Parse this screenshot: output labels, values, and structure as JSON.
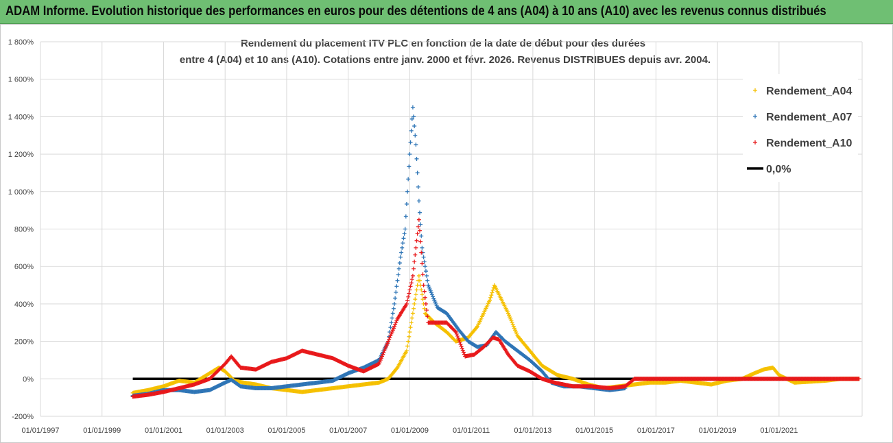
{
  "banner": {
    "text": "ADAM Informe. Evolution historique des performances en euros pour des détentions de 4 ans (A04) à 10 ans (A10) avec les revenus connus distribués"
  },
  "colors": {
    "banner_bg": "#6fbf73",
    "A04": "#f5c000",
    "A07": "#2e75b6",
    "A10": "#e8191b",
    "zero": "#000000",
    "grid": "#d9d9d9"
  },
  "chart_data": {
    "type": "scatter",
    "title_lines": [
      "Rendement du placement ITV PLC en fonction de la date de début pour des durées",
      "entre 4 (A04) et 10 ans (A10).  Cotations entre janv. 2000 et févr. 2026. Revenus DISTRIBUES depuis avr. 2004."
    ],
    "x_ticks": [
      "01/01/1997",
      "01/01/1999",
      "01/01/2001",
      "01/01/2003",
      "01/01/2005",
      "01/01/2007",
      "01/01/2009",
      "01/01/2011",
      "01/01/2013",
      "01/01/2015",
      "01/01/2017",
      "01/01/2019",
      "01/01/2021"
    ],
    "x_range": [
      1997.0,
      2023.7
    ],
    "y_ticks": [
      "-200%",
      "0%",
      "200%",
      "400%",
      "600%",
      "800%",
      "1 000%",
      "1 200%",
      "1 400%",
      "1 600%",
      "1 800%"
    ],
    "y_range": [
      -200,
      1800
    ],
    "grid": true,
    "legend_position": "top-right",
    "series": [
      {
        "name": "Rendement_A04",
        "marker": "plus",
        "points": [
          [
            2000.0,
            -75
          ],
          [
            2000.5,
            -60
          ],
          [
            2001.0,
            -40
          ],
          [
            2001.5,
            -10
          ],
          [
            2002.0,
            -20
          ],
          [
            2002.5,
            30
          ],
          [
            2002.8,
            60
          ],
          [
            2003.0,
            40
          ],
          [
            2003.3,
            -10
          ],
          [
            2003.6,
            -20
          ],
          [
            2004.0,
            -30
          ],
          [
            2004.5,
            -50
          ],
          [
            2005.0,
            -60
          ],
          [
            2005.5,
            -70
          ],
          [
            2006.0,
            -60
          ],
          [
            2006.5,
            -50
          ],
          [
            2007.0,
            -40
          ],
          [
            2007.5,
            -30
          ],
          [
            2008.0,
            -20
          ],
          [
            2008.3,
            0
          ],
          [
            2008.6,
            60
          ],
          [
            2008.9,
            150
          ],
          [
            2009.0,
            250
          ],
          [
            2009.15,
            400
          ],
          [
            2009.3,
            550
          ],
          [
            2009.4,
            450
          ],
          [
            2009.5,
            350
          ],
          [
            2009.8,
            300
          ],
          [
            2010.2,
            250
          ],
          [
            2010.5,
            200
          ],
          [
            2010.9,
            220
          ],
          [
            2011.2,
            280
          ],
          [
            2011.4,
            350
          ],
          [
            2011.6,
            420
          ],
          [
            2011.75,
            500
          ],
          [
            2011.9,
            450
          ],
          [
            2012.2,
            350
          ],
          [
            2012.5,
            230
          ],
          [
            2012.9,
            150
          ],
          [
            2013.3,
            70
          ],
          [
            2013.8,
            20
          ],
          [
            2014.3,
            0
          ],
          [
            2014.8,
            -30
          ],
          [
            2015.3,
            -50
          ],
          [
            2015.8,
            -40
          ],
          [
            2016.3,
            -30
          ],
          [
            2016.8,
            -20
          ],
          [
            2017.3,
            -20
          ],
          [
            2017.8,
            -10
          ],
          [
            2018.3,
            -20
          ],
          [
            2018.8,
            -30
          ],
          [
            2019.3,
            -10
          ],
          [
            2019.8,
            0
          ],
          [
            2020.2,
            30
          ],
          [
            2020.5,
            50
          ],
          [
            2020.8,
            60
          ],
          [
            2021.0,
            20
          ],
          [
            2021.5,
            -20
          ],
          [
            2022.0,
            -15
          ],
          [
            2022.5,
            -10
          ],
          [
            2023.0,
            0
          ],
          [
            2023.6,
            0
          ]
        ]
      },
      {
        "name": "Rendement_A07",
        "marker": "plus",
        "points": [
          [
            2000.0,
            -90
          ],
          [
            2000.5,
            -80
          ],
          [
            2001.0,
            -60
          ],
          [
            2001.5,
            -60
          ],
          [
            2002.0,
            -70
          ],
          [
            2002.5,
            -60
          ],
          [
            2003.0,
            -20
          ],
          [
            2003.2,
            -5
          ],
          [
            2003.5,
            -40
          ],
          [
            2004.0,
            -50
          ],
          [
            2004.5,
            -50
          ],
          [
            2005.0,
            -40
          ],
          [
            2005.5,
            -30
          ],
          [
            2006.0,
            -20
          ],
          [
            2006.5,
            -10
          ],
          [
            2007.0,
            30
          ],
          [
            2007.5,
            60
          ],
          [
            2008.0,
            100
          ],
          [
            2008.3,
            200
          ],
          [
            2008.5,
            400
          ],
          [
            2008.7,
            650
          ],
          [
            2008.85,
            800
          ],
          [
            2009.0,
            1200
          ],
          [
            2009.1,
            1450
          ],
          [
            2009.2,
            1250
          ],
          [
            2009.3,
            950
          ],
          [
            2009.4,
            700
          ],
          [
            2009.6,
            500
          ],
          [
            2009.9,
            380
          ],
          [
            2010.2,
            350
          ],
          [
            2010.6,
            260
          ],
          [
            2010.9,
            200
          ],
          [
            2011.2,
            170
          ],
          [
            2011.5,
            180
          ],
          [
            2011.8,
            250
          ],
          [
            2012.1,
            200
          ],
          [
            2012.5,
            150
          ],
          [
            2012.9,
            100
          ],
          [
            2013.3,
            40
          ],
          [
            2013.6,
            -20
          ],
          [
            2014.0,
            -40
          ],
          [
            2014.5,
            -40
          ],
          [
            2015.0,
            -50
          ],
          [
            2015.5,
            -60
          ],
          [
            2016.0,
            -50
          ]
        ]
      },
      {
        "name": "Rendement_A10",
        "marker": "plus",
        "points": [
          [
            2000.0,
            -95
          ],
          [
            2000.5,
            -85
          ],
          [
            2001.0,
            -70
          ],
          [
            2001.5,
            -50
          ],
          [
            2002.0,
            -30
          ],
          [
            2002.5,
            0
          ],
          [
            2003.0,
            80
          ],
          [
            2003.2,
            120
          ],
          [
            2003.5,
            60
          ],
          [
            2004.0,
            50
          ],
          [
            2004.5,
            90
          ],
          [
            2005.0,
            110
          ],
          [
            2005.5,
            150
          ],
          [
            2006.0,
            130
          ],
          [
            2006.5,
            110
          ],
          [
            2007.0,
            70
          ],
          [
            2007.5,
            40
          ],
          [
            2008.0,
            80
          ],
          [
            2008.3,
            200
          ],
          [
            2008.6,
            320
          ],
          [
            2008.9,
            400
          ],
          [
            2009.1,
            550
          ],
          [
            2009.3,
            850
          ],
          [
            2009.45,
            500
          ],
          [
            2009.6,
            300
          ],
          [
            2009.9,
            300
          ],
          [
            2010.2,
            300
          ],
          [
            2010.5,
            250
          ],
          [
            2010.8,
            120
          ],
          [
            2011.1,
            130
          ],
          [
            2011.4,
            170
          ],
          [
            2011.7,
            220
          ],
          [
            2011.9,
            210
          ],
          [
            2012.2,
            130
          ],
          [
            2012.5,
            70
          ],
          [
            2012.9,
            40
          ],
          [
            2013.3,
            0
          ],
          [
            2013.7,
            -20
          ],
          [
            2014.3,
            -40
          ],
          [
            2014.9,
            -40
          ],
          [
            2015.5,
            -50
          ],
          [
            2016.0,
            -40
          ],
          [
            2016.3,
            0
          ],
          [
            2018.0,
            0
          ],
          [
            2020.0,
            0
          ],
          [
            2022.0,
            0
          ],
          [
            2023.6,
            0
          ]
        ]
      },
      {
        "name": "0,0%",
        "marker": "line",
        "points": [
          [
            2000.0,
            0
          ],
          [
            2023.6,
            0
          ]
        ]
      }
    ]
  }
}
